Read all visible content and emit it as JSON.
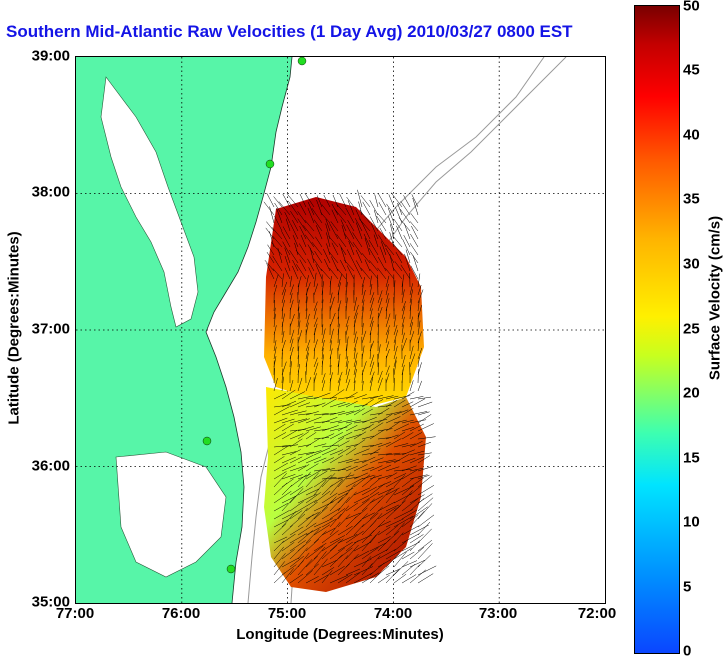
{
  "title": "Southern Mid-Atlantic Raw Velocities (1 Day Avg) 2010/03/27 0800 EST",
  "xlabel": "Longitude (Degrees:Minutes)",
  "ylabel": "Latitude (Degrees:Minutes)",
  "x_ticks": [
    "77:00",
    "76:00",
    "75:00",
    "74:00",
    "73:00",
    "72:00"
  ],
  "y_ticks": [
    "39:00",
    "38:00",
    "37:00",
    "36:00",
    "35:00"
  ],
  "colorbar": {
    "label": "Surface Velocity (cm/s)",
    "ticks": [
      "0",
      "5",
      "10",
      "15",
      "20",
      "25",
      "30",
      "35",
      "40",
      "45",
      "50"
    ],
    "range": [
      0,
      50
    ]
  },
  "colors": {
    "land": "#57f5a8",
    "title": "#1414e6",
    "bathymetry": "#9a9a9a",
    "station": "#22dd22"
  }
}
